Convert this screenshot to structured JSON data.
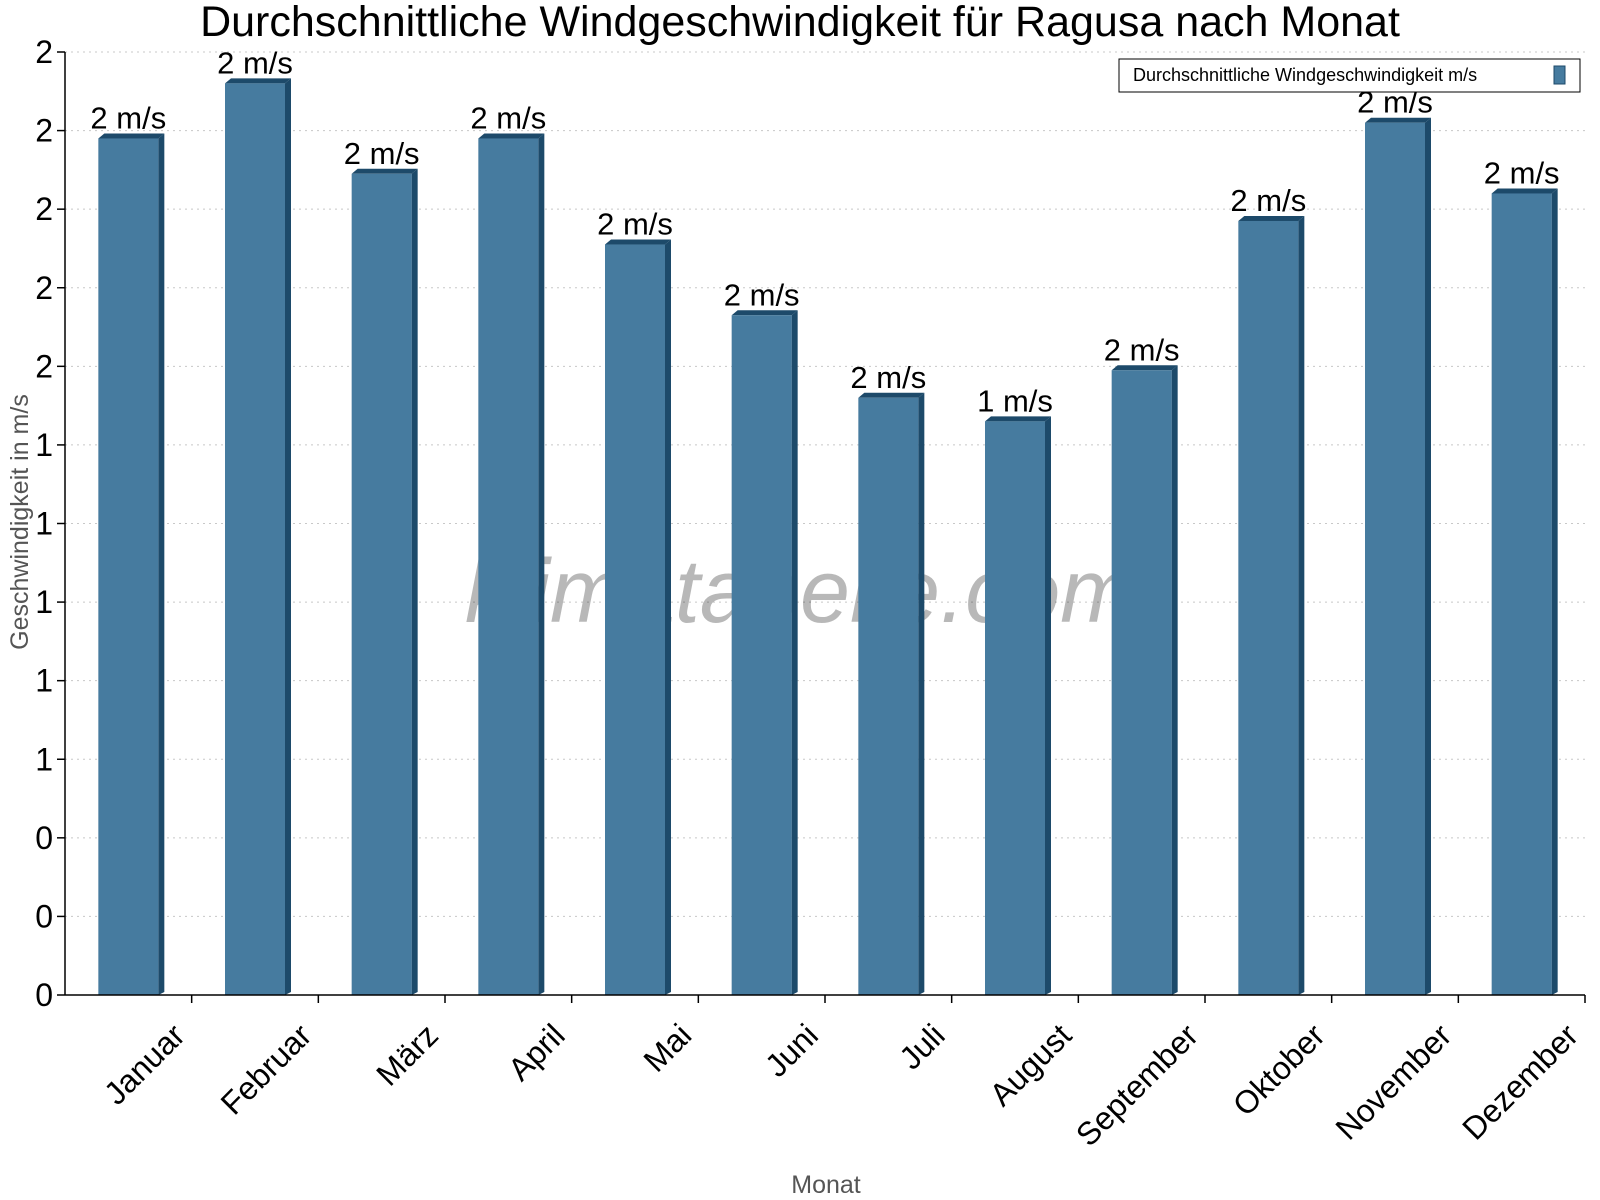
{
  "chart_data": {
    "type": "bar",
    "title": "Durchschnittliche Windgeschwindigkeit für Ragusa nach Monat",
    "xlabel": "Monat",
    "ylabel": "Geschwindigkeit in m/s",
    "categories": [
      "Januar",
      "Februar",
      "März",
      "April",
      "Mai",
      "Juni",
      "Juli",
      "August",
      "September",
      "Oktober",
      "November",
      "Dezember"
    ],
    "series": [
      {
        "name": "Durchschnittliche Windgeschwindigkeit m/s",
        "values": [
          2.18,
          2.32,
          2.09,
          2.18,
          1.91,
          1.73,
          1.52,
          1.46,
          1.59,
          1.97,
          2.22,
          2.04
        ],
        "data_labels": [
          "2 m/s",
          "2 m/s",
          "2 m/s",
          "2 m/s",
          "2 m/s",
          "2 m/s",
          "2 m/s",
          "1 m/s",
          "2 m/s",
          "2 m/s",
          "2 m/s",
          "2 m/s"
        ],
        "color": "#467b9f",
        "side_color": "#1d4a6a"
      }
    ],
    "ylim": [
      0,
      2.4
    ],
    "yticks": [
      0,
      0.2,
      0.4,
      0.6,
      0.8,
      1.0,
      1.2,
      1.4,
      1.6,
      1.8,
      2.0,
      2.2,
      2.4
    ],
    "ytick_labels": [
      "0",
      "0",
      "0",
      "1",
      "1",
      "1",
      "1",
      "1",
      "2",
      "2",
      "2",
      "2",
      "2"
    ],
    "grid": true,
    "legend": "top-right",
    "watermark": "klimatabelle.com"
  }
}
